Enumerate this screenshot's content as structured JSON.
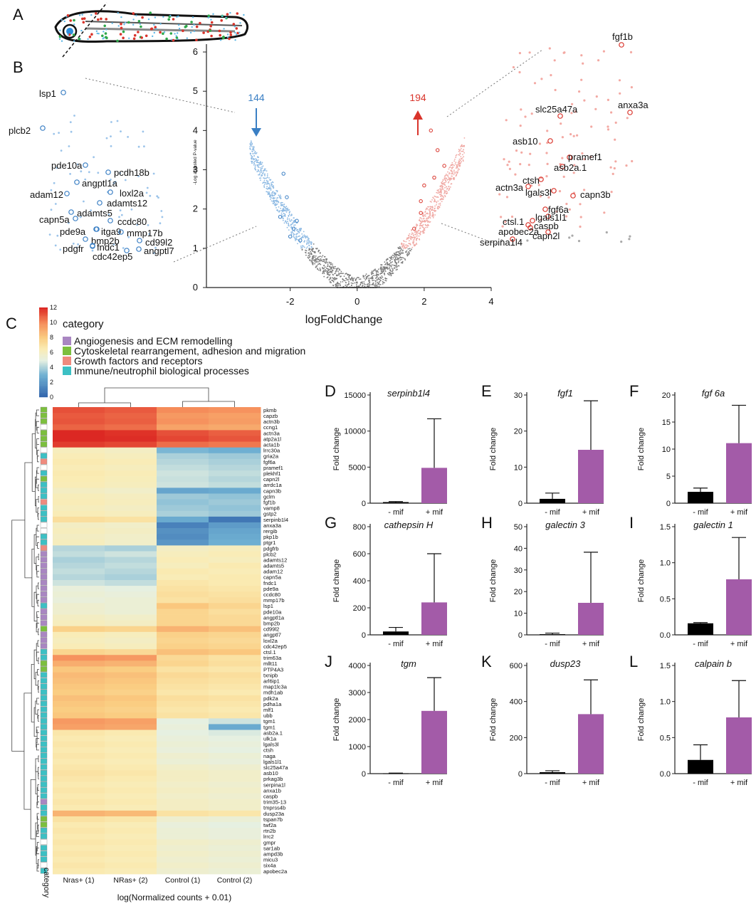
{
  "panel_letters": [
    "A",
    "B",
    "C",
    "D",
    "E",
    "F",
    "G",
    "H",
    "I",
    "J",
    "K",
    "L"
  ],
  "colors": {
    "down": "#3a7fc4",
    "up": "#d9342b",
    "bar_minus": "#000000",
    "bar_plus": "#a35ba8",
    "cat_angio": "#a986c2",
    "cat_cyto": "#7cbf3e",
    "cat_growth": "#ef8a7e",
    "cat_immune": "#3cc0c4"
  },
  "chart_data": [
    {
      "type": "scatter",
      "id": "volcano",
      "xlabel": "logFoldChange",
      "ylabel": "-Log adjusted P-value",
      "xlim": [
        -4.5,
        4
      ],
      "ylim": [
        0,
        6.2
      ],
      "xticks": [
        -2,
        0,
        2,
        4
      ],
      "yticks": [
        0,
        1,
        2,
        3,
        4,
        5,
        6
      ],
      "down_count": "144",
      "up_count": "194",
      "left_genes": [
        "lsp1",
        "plcb2",
        "pde10a",
        "pcdh18b",
        "angptl1a",
        "loxl2a",
        "adam12",
        "adamts12",
        "capn5a",
        "adamts5",
        "ccdc80",
        "pde9a",
        "itga9",
        "mmp17b",
        "bmp2b",
        "cd99l2",
        "pdgfr",
        "fndc1",
        "angptl7",
        "cdc42ep5"
      ],
      "right_genes": [
        "fgf1b",
        "anxa3a",
        "slc25a47a",
        "asb10",
        "pramef1",
        "asb2a.1",
        "ctsh",
        "actn3a",
        "lgals3l",
        "capn3b",
        "fgf6a",
        "lgals1l1",
        "ctsl.1",
        "caspb",
        "apobec2a",
        "capn2l",
        "serpina1l4"
      ]
    },
    {
      "type": "heatmap",
      "id": "heatmap",
      "legend_title": "category",
      "scale_title": "",
      "scale_ticks": [
        0,
        2,
        4,
        6,
        8,
        10,
        12
      ],
      "categories": [
        "Angiogenesis and ECM remodelling",
        "Cytoskeletal rearrangement, adhesion and migration",
        "Growth factors and receptors",
        "Immune/neutrophil biological processes"
      ],
      "columns": [
        "Nras+ (1)",
        "NRas+ (2)",
        "Control (1)",
        "Control (2)"
      ],
      "xlabel": "log(Normalized counts + 0.01)",
      "category_axis_label": "category",
      "rows": [
        "pkmb",
        "capzb",
        "actn3b",
        "ccng1",
        "actn3a",
        "atp2a1l",
        "acta1b",
        "lrrc30a",
        "gria2a",
        "fgf6a",
        "pramef1",
        "plekhf1",
        "capn2l",
        "arrdc1a",
        "capn3b",
        "gclm",
        "fgf1b",
        "vamp8",
        "gstp2",
        "serpinb1l4",
        "anxa3a",
        "rergib",
        "pkp1b",
        "ptgr1",
        "pdgfrb",
        "plcb2",
        "adamts12",
        "adamts5",
        "adam12",
        "capn5a",
        "fndc1",
        "pde9a",
        "ccdc80",
        "mmp17b",
        "lsp1",
        "pde10a",
        "angptl1a",
        "bmp2b",
        "cd99l2",
        "angptl7",
        "loxl2a",
        "cdc42ep5",
        "ctsl.1",
        "trim63a",
        "mllt11",
        "PTP4A3",
        "txnipb",
        "arl6ip1",
        "map1lc3a",
        "mdh1ab",
        "pdk2a",
        "pdha1a",
        "mlf1",
        "ubb",
        "tgm1",
        "tgm1",
        "asb2a.1",
        "ulk1a",
        "lgals3l",
        "ctsh",
        "naga",
        "lgals1l1",
        "slc25a47a",
        "asb10",
        "prkag3b",
        "serpina1l",
        "anxa1b",
        "caspb",
        "trim35-13",
        "tmprss4b",
        "dusp23a",
        "tspan7b",
        "twf2a",
        "rtn2b",
        "lrrc2",
        "gmpr",
        "sar1ab",
        "ampd3b",
        "micu3",
        "six4a",
        "apobec2a"
      ],
      "values": [
        [
          11.2,
          11.0,
          10.0,
          9.8
        ],
        [
          11.0,
          10.8,
          9.6,
          9.4
        ],
        [
          11.1,
          10.9,
          9.8,
          9.5
        ],
        [
          10.8,
          10.6,
          9.3,
          9.1
        ],
        [
          12.0,
          11.8,
          11.2,
          10.9
        ],
        [
          12.0,
          11.9,
          11.4,
          11.1
        ],
        [
          11.6,
          11.4,
          10.6,
          10.4
        ],
        [
          6.2,
          6.0,
          3.2,
          3.0
        ],
        [
          6.4,
          6.2,
          4.0,
          3.8
        ],
        [
          6.6,
          6.4,
          4.2,
          4.0
        ],
        [
          6.4,
          6.2,
          4.4,
          4.2
        ],
        [
          6.6,
          6.4,
          4.6,
          4.4
        ],
        [
          6.5,
          6.3,
          4.5,
          4.2
        ],
        [
          6.4,
          6.2,
          4.6,
          4.4
        ],
        [
          6.0,
          5.8,
          2.6,
          2.8
        ],
        [
          6.3,
          6.1,
          3.8,
          3.6
        ],
        [
          6.4,
          6.2,
          3.6,
          3.8
        ],
        [
          6.2,
          6.0,
          3.8,
          3.6
        ],
        [
          6.4,
          6.2,
          4.0,
          3.8
        ],
        [
          7.2,
          7.0,
          2.8,
          0.8
        ],
        [
          6.0,
          5.8,
          1.2,
          2.2
        ],
        [
          6.2,
          6.0,
          1.8,
          2.6
        ],
        [
          6.0,
          5.8,
          1.6,
          2.8
        ],
        [
          6.2,
          5.8,
          2.0,
          3.0
        ],
        [
          4.2,
          4.0,
          6.0,
          6.2
        ],
        [
          4.4,
          4.6,
          6.2,
          6.4
        ],
        [
          4.0,
          4.2,
          6.4,
          6.2
        ],
        [
          4.2,
          4.4,
          6.2,
          6.6
        ],
        [
          4.4,
          4.2,
          6.6,
          6.4
        ],
        [
          4.2,
          4.0,
          6.4,
          6.6
        ],
        [
          4.6,
          4.4,
          6.8,
          6.6
        ],
        [
          5.2,
          5.0,
          7.0,
          6.8
        ],
        [
          5.4,
          5.2,
          7.2,
          7.0
        ],
        [
          5.2,
          5.4,
          7.0,
          7.2
        ],
        [
          5.6,
          5.4,
          8.2,
          7.6
        ],
        [
          5.6,
          5.4,
          7.6,
          7.2
        ],
        [
          6.0,
          5.8,
          7.6,
          7.4
        ],
        [
          6.2,
          6.0,
          7.6,
          7.4
        ],
        [
          7.8,
          7.6,
          8.8,
          8.4
        ],
        [
          6.4,
          6.2,
          7.8,
          7.6
        ],
        [
          6.2,
          6.0,
          7.6,
          7.4
        ],
        [
          6.4,
          6.2,
          7.8,
          7.6
        ],
        [
          7.6,
          7.4,
          8.4,
          8.2
        ],
        [
          9.8,
          9.6,
          7.4,
          7.0
        ],
        [
          9.0,
          8.8,
          7.6,
          7.2
        ],
        [
          8.2,
          8.0,
          7.0,
          6.8
        ],
        [
          8.6,
          8.4,
          7.4,
          7.2
        ],
        [
          8.4,
          8.2,
          7.2,
          7.0
        ],
        [
          8.2,
          8.0,
          7.0,
          6.8
        ],
        [
          8.0,
          7.8,
          6.8,
          6.6
        ],
        [
          8.4,
          8.2,
          7.2,
          7.0
        ],
        [
          8.2,
          8.0,
          7.0,
          6.8
        ],
        [
          8.0,
          7.8,
          6.8,
          6.6
        ],
        [
          8.2,
          8.0,
          7.0,
          6.8
        ],
        [
          9.6,
          9.4,
          5.0,
          4.6
        ],
        [
          9.4,
          9.2,
          5.2,
          2.8
        ],
        [
          6.8,
          6.6,
          5.0,
          4.8
        ],
        [
          6.6,
          6.4,
          5.2,
          5.0
        ],
        [
          6.8,
          6.6,
          5.4,
          5.2
        ],
        [
          6.6,
          6.4,
          5.2,
          5.0
        ],
        [
          6.8,
          6.6,
          5.6,
          5.4
        ],
        [
          6.6,
          6.4,
          5.4,
          5.2
        ],
        [
          6.8,
          6.6,
          5.8,
          5.6
        ],
        [
          7.0,
          6.8,
          6.0,
          5.8
        ],
        [
          6.8,
          6.6,
          6.0,
          5.8
        ],
        [
          6.6,
          6.4,
          5.8,
          5.6
        ],
        [
          6.8,
          6.6,
          6.0,
          5.8
        ],
        [
          6.6,
          6.4,
          5.8,
          5.6
        ],
        [
          6.8,
          6.6,
          6.0,
          5.8
        ],
        [
          6.6,
          6.4,
          6.0,
          5.8
        ],
        [
          8.8,
          8.6,
          7.0,
          6.8
        ],
        [
          7.0,
          6.8,
          5.6,
          5.4
        ],
        [
          6.6,
          6.4,
          5.2,
          5.0
        ],
        [
          6.8,
          6.6,
          5.4,
          5.2
        ],
        [
          6.6,
          6.4,
          5.4,
          5.2
        ],
        [
          6.8,
          6.6,
          5.8,
          5.6
        ],
        [
          6.6,
          6.4,
          5.6,
          5.4
        ],
        [
          6.8,
          6.6,
          5.8,
          5.6
        ],
        [
          6.6,
          6.4,
          5.6,
          5.4
        ],
        [
          6.8,
          6.6,
          5.8,
          5.6
        ],
        [
          6.6,
          6.4,
          5.6,
          5.4
        ]
      ],
      "row_categories": [
        "cyto",
        "cyto",
        "cyto",
        "none",
        "cyto",
        "cyto",
        "cyto",
        "none",
        "immune",
        "growth",
        "none",
        "immune",
        "cyto",
        "immune",
        "immune",
        "immune",
        "growth",
        "immune",
        "immune",
        "immune",
        "none",
        "none",
        "immune",
        "immune",
        "growth",
        "angio",
        "angio",
        "angio",
        "angio",
        "angio",
        "angio",
        "angio",
        "angio",
        "angio",
        "immune",
        "angio",
        "angio",
        "angio",
        "cyto",
        "angio",
        "angio",
        "angio",
        "immune",
        "immune",
        "cyto",
        "cyto",
        "immune",
        "immune",
        "immune",
        "immune",
        "immune",
        "immune",
        "immune",
        "immune",
        "immune",
        "immune",
        "immune",
        "immune",
        "immune",
        "immune",
        "immune",
        "immune",
        "immune",
        "immune",
        "immune",
        "immune",
        "immune",
        "immune",
        "angio",
        "immune",
        "immune",
        "cyto",
        "cyto",
        "immune",
        "immune",
        "none",
        "immune",
        "immune",
        "immune",
        "none",
        "immune"
      ]
    },
    {
      "type": "bar",
      "id": "D",
      "title": "serpinb1l4",
      "ylabel": "Fold change",
      "categories": [
        "- mif",
        "+ mif"
      ],
      "values": [
        150,
        4900
      ],
      "errors": [
        80,
        6800
      ],
      "ylim": [
        0,
        15000
      ],
      "yticks": [
        0,
        5000,
        10000,
        15000
      ]
    },
    {
      "type": "bar",
      "id": "E",
      "title": "fgf1",
      "ylabel": "Fold change",
      "categories": [
        "- mif",
        "+ mif"
      ],
      "values": [
        1.2,
        14.8
      ],
      "errors": [
        1.6,
        13.6
      ],
      "ylim": [
        0,
        30
      ],
      "yticks": [
        0,
        10,
        20,
        30
      ]
    },
    {
      "type": "bar",
      "id": "F",
      "title": "fgf 6a",
      "ylabel": "Fold change",
      "categories": [
        "- mif",
        "+ mif"
      ],
      "values": [
        2.1,
        11.1
      ],
      "errors": [
        0.7,
        7.0
      ],
      "ylim": [
        0,
        20
      ],
      "yticks": [
        0,
        5,
        10,
        15,
        20
      ]
    },
    {
      "type": "bar",
      "id": "G",
      "title": "cathepsin H",
      "ylabel": "Fold change",
      "categories": [
        "- mif",
        "+ mif"
      ],
      "values": [
        25,
        240
      ],
      "errors": [
        30,
        360
      ],
      "ylim": [
        0,
        800
      ],
      "yticks": [
        0,
        200,
        400,
        600,
        800
      ]
    },
    {
      "type": "bar",
      "id": "H",
      "title": "galectin 3",
      "ylabel": "Fold change",
      "categories": [
        "- mif",
        "+ mif"
      ],
      "values": [
        0.3,
        14.8
      ],
      "errors": [
        0.5,
        23.4
      ],
      "ylim": [
        0,
        50
      ],
      "yticks": [
        0,
        10,
        20,
        30,
        40,
        50
      ]
    },
    {
      "type": "bar",
      "id": "I",
      "title": "galectin 1",
      "ylabel": "Fold change",
      "categories": [
        "- mif",
        "+ mif"
      ],
      "values": [
        0.16,
        0.77
      ],
      "errors": [
        0.01,
        0.58
      ],
      "ylim": [
        0,
        1.5
      ],
      "yticks": [
        0.0,
        0.5,
        1.0,
        1.5
      ]
    },
    {
      "type": "bar",
      "id": "J",
      "title": "tgm",
      "ylabel": "Fold change",
      "categories": [
        "- mif",
        "+ mif"
      ],
      "values": [
        10,
        2320
      ],
      "errors": [
        10,
        1230
      ],
      "ylim": [
        0,
        4000
      ],
      "yticks": [
        0,
        1000,
        2000,
        3000,
        4000
      ]
    },
    {
      "type": "bar",
      "id": "K",
      "title": "dusp23",
      "ylabel": "Fold change",
      "categories": [
        "- mif",
        "+ mif"
      ],
      "values": [
        8,
        330
      ],
      "errors": [
        8,
        190
      ],
      "ylim": [
        0,
        600
      ],
      "yticks": [
        0,
        200,
        400,
        600
      ]
    },
    {
      "type": "bar",
      "id": "L",
      "title": "calpain b",
      "ylabel": "Fold change",
      "categories": [
        "- mif",
        "+ mif"
      ],
      "values": [
        0.19,
        0.78
      ],
      "errors": [
        0.21,
        0.51
      ],
      "ylim": [
        0,
        1.5
      ],
      "yticks": [
        0.0,
        0.5,
        1.0,
        1.5
      ]
    }
  ]
}
